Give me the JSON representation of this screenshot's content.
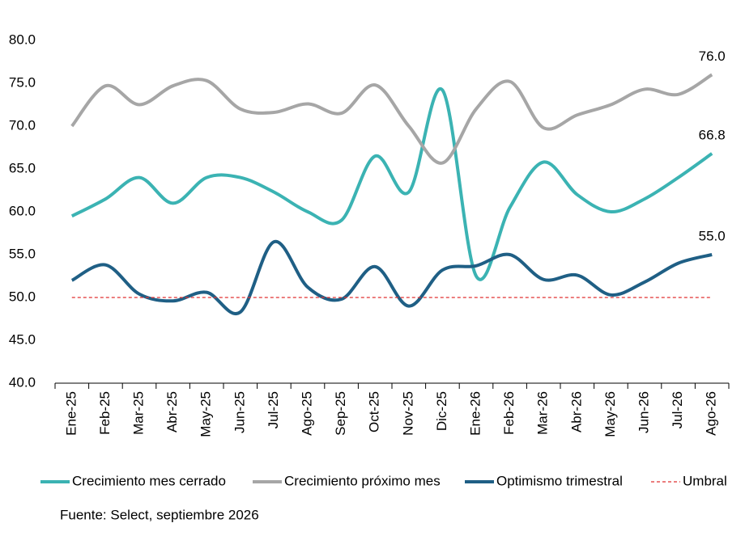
{
  "chart_data": {
    "type": "line",
    "categories": [
      "Ene-25",
      "Feb-25",
      "Mar-25",
      "Abr-25",
      "May-25",
      "Jun-25",
      "Jul-25",
      "Ago-25",
      "Sep-25",
      "Oct-25",
      "Nov-25",
      "Dic-25",
      "Ene-26",
      "Feb-26",
      "Mar-26",
      "Abr-26",
      "May-26",
      "Jun-26",
      "Jul-26",
      "Ago-26"
    ],
    "series": [
      {
        "name": "Crecimiento mes cerrado",
        "color": "#3bb3b3",
        "smooth": true,
        "values": [
          59.5,
          61.5,
          64.0,
          61.0,
          64.0,
          64.0,
          62.3,
          60.0,
          59.0,
          66.5,
          62.3,
          74.2,
          52.5,
          60.5,
          65.8,
          62.0,
          60.0,
          61.5,
          64.0,
          66.8
        ],
        "value_labels": [
          null,
          null,
          null,
          null,
          null,
          null,
          null,
          null,
          null,
          null,
          null,
          null,
          null,
          null,
          null,
          null,
          null,
          null,
          null,
          "66.8"
        ]
      },
      {
        "name": "Crecimiento próximo mes",
        "color": "#a6a6a6",
        "smooth": true,
        "values": [
          70.0,
          74.7,
          72.5,
          74.7,
          75.3,
          72.0,
          71.6,
          72.6,
          71.5,
          74.8,
          70.0,
          65.7,
          72.0,
          75.2,
          69.8,
          71.3,
          72.5,
          74.3,
          73.7,
          76.0
        ],
        "value_labels": [
          null,
          null,
          null,
          null,
          null,
          null,
          null,
          null,
          null,
          null,
          null,
          null,
          null,
          null,
          null,
          null,
          null,
          null,
          null,
          "76.0"
        ]
      },
      {
        "name": "Optimismo trimestral",
        "color": "#1f5f85",
        "smooth": true,
        "values": [
          52.0,
          53.8,
          50.4,
          49.6,
          50.6,
          48.3,
          56.5,
          51.2,
          49.8,
          53.6,
          49.0,
          53.2,
          53.7,
          55.0,
          52.1,
          52.6,
          50.3,
          51.8,
          54.0,
          55.0
        ],
        "value_labels": [
          null,
          null,
          null,
          null,
          null,
          null,
          null,
          null,
          null,
          null,
          null,
          null,
          null,
          null,
          null,
          null,
          null,
          null,
          null,
          "55.0"
        ]
      },
      {
        "name": "Umbral",
        "color": "#e03030",
        "dashed": true,
        "smooth": false,
        "values": [
          50,
          50,
          50,
          50,
          50,
          50,
          50,
          50,
          50,
          50,
          50,
          50,
          50,
          50,
          50,
          50,
          50,
          50,
          50,
          50
        ]
      }
    ],
    "ylim": [
      40,
      80
    ],
    "yticks": [
      {
        "value": 40,
        "label": "40.0"
      },
      {
        "value": 45,
        "label": "45.0"
      },
      {
        "value": 50,
        "label": "50.0"
      },
      {
        "value": 55,
        "label": "55.0"
      },
      {
        "value": 60,
        "label": "60.0"
      },
      {
        "value": 65,
        "label": "65.0"
      },
      {
        "value": 70,
        "label": "70.0"
      },
      {
        "value": 75,
        "label": "75.0"
      },
      {
        "value": 80,
        "label": "80.0"
      }
    ],
    "grid": false,
    "legend": "bottom",
    "source": "Fuente: Select, septiembre 2026"
  }
}
